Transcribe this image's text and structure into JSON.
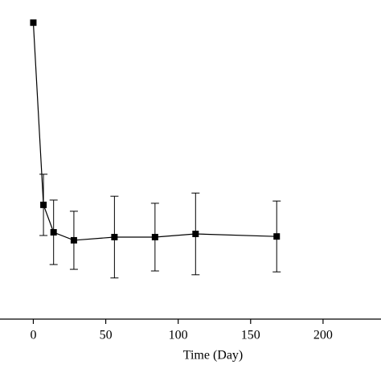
{
  "chart_data": {
    "type": "line",
    "x_label": "Time (Day)",
    "x": [
      0,
      7,
      14,
      28,
      56,
      84,
      112,
      168
    ],
    "series": [
      {
        "color": "#000000",
        "values": [
          92.9,
          35.8,
          27.2,
          24.7,
          25.7,
          25.7,
          26.7,
          25.9
        ],
        "errors": [
          null,
          9.6,
          10.1,
          9.1,
          12.8,
          10.6,
          12.8,
          11.1
        ]
      }
    ],
    "xlim": [
      -23,
      240
    ],
    "xticks": [
      0,
      50,
      100,
      150,
      200
    ],
    "ylim": [
      0,
      100
    ]
  }
}
